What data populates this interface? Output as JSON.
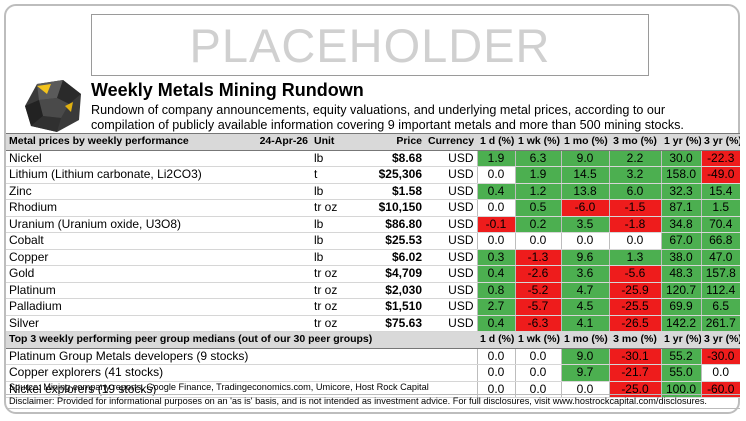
{
  "placeholder": "PLACEHOLDER",
  "title": "Weekly Metals Mining Rundown",
  "description": "Rundown of company announcements, equity valuations, and underlying metal prices, according to our compilation of publicly available information covering 9 important metals and more than 500 mining stocks.",
  "metals_header": {
    "label": "Metal prices by weekly performance",
    "date": "24-Apr-26",
    "unit": "Unit",
    "price": "Price",
    "currency": "Currency",
    "cols": [
      "1 d (%)",
      "1 wk (%)",
      "1 mo (%)",
      "3 mo (%)",
      "1 yr (%)",
      "3 yr (%)"
    ]
  },
  "metals": [
    {
      "name": "Nickel",
      "unit": "lb",
      "price": "$8.68",
      "currency": "USD",
      "vals": [
        "1.9",
        "6.3",
        "9.0",
        "2.2",
        "30.0",
        "-22.3"
      ],
      "colors": [
        "g",
        "g",
        "g",
        "g",
        "g",
        "r"
      ]
    },
    {
      "name": "Lithium (Lithium carbonate, Li2CO3)",
      "unit": "t",
      "price": "$25,306",
      "currency": "USD",
      "vals": [
        "0.0",
        "1.9",
        "14.5",
        "3.2",
        "158.0",
        "-49.0"
      ],
      "colors": [
        "w",
        "g",
        "g",
        "g",
        "g",
        "r"
      ]
    },
    {
      "name": "Zinc",
      "unit": "lb",
      "price": "$1.58",
      "currency": "USD",
      "vals": [
        "0.4",
        "1.2",
        "13.8",
        "6.0",
        "32.3",
        "15.4"
      ],
      "colors": [
        "g",
        "g",
        "g",
        "g",
        "g",
        "g"
      ]
    },
    {
      "name": "Rhodium",
      "unit": "tr oz",
      "price": "$10,150",
      "currency": "USD",
      "vals": [
        "0.0",
        "0.5",
        "-6.0",
        "-1.5",
        "87.1",
        "1.5"
      ],
      "colors": [
        "w",
        "g",
        "r",
        "r",
        "g",
        "g"
      ]
    },
    {
      "name": "Uranium (Uranium oxide, U3O8)",
      "unit": "lb",
      "price": "$86.80",
      "currency": "USD",
      "vals": [
        "-0.1",
        "0.2",
        "3.5",
        "-1.8",
        "34.8",
        "70.4"
      ],
      "colors": [
        "r",
        "g",
        "g",
        "r",
        "g",
        "g"
      ]
    },
    {
      "name": "Cobalt",
      "unit": "lb",
      "price": "$25.53",
      "currency": "USD",
      "vals": [
        "0.0",
        "0.0",
        "0.0",
        "0.0",
        "67.0",
        "66.8"
      ],
      "colors": [
        "w",
        "w",
        "w",
        "w",
        "g",
        "g"
      ]
    },
    {
      "name": "Copper",
      "unit": "lb",
      "price": "$6.02",
      "currency": "USD",
      "vals": [
        "0.3",
        "-1.3",
        "9.6",
        "1.3",
        "38.0",
        "47.0"
      ],
      "colors": [
        "g",
        "r",
        "g",
        "g",
        "g",
        "g"
      ]
    },
    {
      "name": "Gold",
      "unit": "tr oz",
      "price": "$4,709",
      "currency": "USD",
      "vals": [
        "0.4",
        "-2.6",
        "3.6",
        "-5.6",
        "48.3",
        "157.8"
      ],
      "colors": [
        "g",
        "r",
        "g",
        "r",
        "g",
        "g"
      ]
    },
    {
      "name": "Platinum",
      "unit": "tr oz",
      "price": "$2,030",
      "currency": "USD",
      "vals": [
        "0.8",
        "-5.2",
        "4.7",
        "-25.9",
        "120.7",
        "112.4"
      ],
      "colors": [
        "g",
        "r",
        "g",
        "r",
        "g",
        "g"
      ]
    },
    {
      "name": "Palladium",
      "unit": "tr oz",
      "price": "$1,510",
      "currency": "USD",
      "vals": [
        "2.7",
        "-5.7",
        "4.5",
        "-25.5",
        "69.9",
        "6.5"
      ],
      "colors": [
        "g",
        "r",
        "g",
        "r",
        "g",
        "g"
      ]
    },
    {
      "name": "Silver",
      "unit": "tr oz",
      "price": "$75.63",
      "currency": "USD",
      "vals": [
        "0.4",
        "-6.3",
        "4.1",
        "-26.5",
        "142.2",
        "261.7"
      ],
      "colors": [
        "g",
        "r",
        "g",
        "r",
        "g",
        "g"
      ]
    }
  ],
  "peers_header": {
    "label": "Top 3 weekly performing peer group medians (out of our 30 peer groups)",
    "cols": [
      "1 d (%)",
      "1 wk (%)",
      "1 mo (%)",
      "3 mo (%)",
      "1 yr (%)",
      "3 yr (%)"
    ]
  },
  "peers": [
    {
      "name": "Platinum Group Metals developers (9 stocks)",
      "vals": [
        "0.0",
        "0.0",
        "9.0",
        "-30.1",
        "55.2",
        "-30.0"
      ],
      "colors": [
        "w",
        "w",
        "g",
        "r",
        "g",
        "r"
      ]
    },
    {
      "name": "Copper explorers (41 stocks)",
      "vals": [
        "0.0",
        "0.0",
        "9.7",
        "-21.7",
        "55.0",
        "0.0"
      ],
      "colors": [
        "w",
        "w",
        "g",
        "r",
        "g",
        "w"
      ]
    },
    {
      "name": "Nickel explorers (19 stocks)",
      "vals": [
        "0.0",
        "0.0",
        "0.0",
        "-25.0",
        "100.0",
        "-60.0"
      ],
      "colors": [
        "w",
        "w",
        "w",
        "r",
        "g",
        "r"
      ]
    }
  ],
  "source": "Source: Mining company reports, Google Finance, Tradingeconomics.com, Umicore, Host Rock Capital",
  "disclaimer": "Disclaimer: Provided for informational purposes on an 'as is' basis, and is not intended as investment advice. For full disclosures, visit www.hostrockcapital.com/disclosures."
}
